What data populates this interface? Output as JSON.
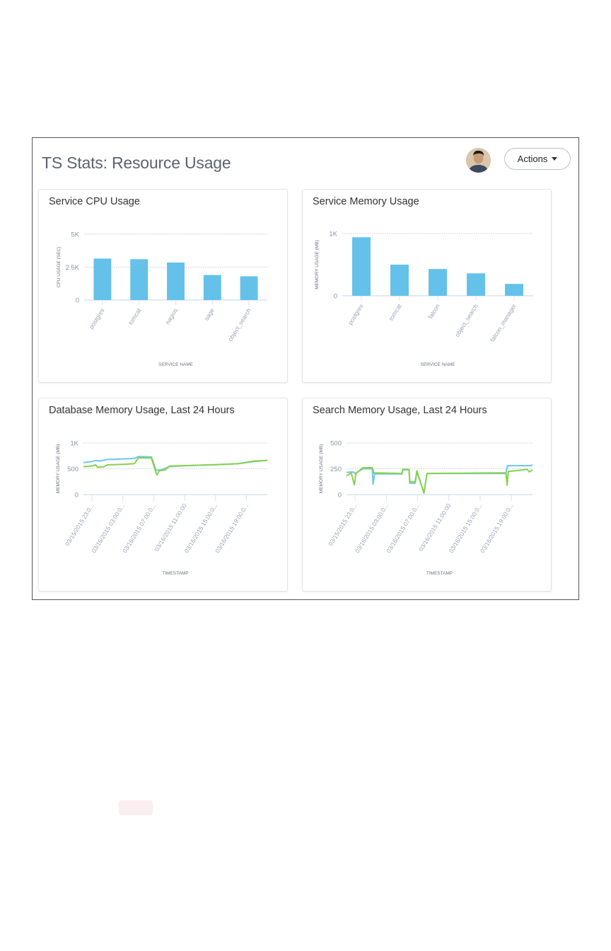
{
  "header": {
    "title": "TS Stats: Resource Usage",
    "actions_label": "Actions"
  },
  "colors": {
    "bar": "#63c1ea",
    "series_blue": "#6ec6ee",
    "series_green": "#86d24a",
    "grid": "#c9ccd3",
    "axis": "#d6e4f2"
  },
  "chart_data": [
    {
      "type": "bar",
      "title": "Service CPU Usage",
      "xlabel": "SERVICE NAME",
      "ylabel": "CPU USAGE (SEC)",
      "ylim": [
        0,
        5000
      ],
      "yticks": [
        {
          "v": 0,
          "label": "0"
        },
        {
          "v": 2500,
          "label": "2.5K"
        },
        {
          "v": 5000,
          "label": "5K"
        }
      ],
      "categories": [
        "postgres",
        "tomcat",
        "nagios",
        "sage",
        "object_search"
      ],
      "values": [
        3150,
        3100,
        2850,
        1900,
        1800
      ]
    },
    {
      "type": "bar",
      "title": "Service Memory Usage",
      "xlabel": "SERVICE NAME",
      "ylabel": "MEMORY USAGE (MB)",
      "ylim": [
        0,
        1000
      ],
      "yticks": [
        {
          "v": 0,
          "label": "0"
        },
        {
          "v": 1000,
          "label": "1K"
        }
      ],
      "categories": [
        "postgres",
        "tomcat",
        "falcon",
        "object_search",
        "falcon_manager"
      ],
      "values": [
        940,
        500,
        430,
        360,
        190
      ]
    },
    {
      "type": "line",
      "title": "Database Memory Usage, Last 24 Hours",
      "xlabel": "TIMESTAMP",
      "ylabel": "MEMORY USAGE (MB)",
      "ylim": [
        0,
        1000
      ],
      "xlim_hours_from_first_tick": [
        -1.1,
        22.7
      ],
      "yticks": [
        {
          "v": 0,
          "label": "0"
        },
        {
          "v": 500,
          "label": "500"
        },
        {
          "v": 1000,
          "label": "1K"
        }
      ],
      "xticks": [
        {
          "h": 0,
          "label": "03/15/2015 23:0..."
        },
        {
          "h": 4,
          "label": "03/16/2015 03:00:0..."
        },
        {
          "h": 8,
          "label": "03/16/2015 07:00:0..."
        },
        {
          "h": 12,
          "label": "03/16/2015 11:00:00"
        },
        {
          "h": 16,
          "label": "03/16/2015 15:00:0..."
        },
        {
          "h": 20,
          "label": "03/16/2015 19:00:0..."
        }
      ],
      "series": [
        {
          "name": "blue",
          "points": [
            [
              -1.1,
              620
            ],
            [
              0,
              640
            ],
            [
              0.5,
              660
            ],
            [
              1,
              650
            ],
            [
              2,
              680
            ],
            [
              4,
              690
            ],
            [
              5.5,
              700
            ],
            [
              6,
              735
            ],
            [
              7.7,
              730
            ],
            [
              8.3,
              470
            ],
            [
              9,
              480
            ],
            [
              10,
              540
            ],
            [
              12,
              560
            ],
            [
              16,
              580
            ],
            [
              19,
              600
            ],
            [
              21,
              640
            ],
            [
              22.7,
              665
            ]
          ]
        },
        {
          "name": "green",
          "points": [
            [
              -1.1,
              540
            ],
            [
              0,
              555
            ],
            [
              0.5,
              575
            ],
            [
              0.7,
              530
            ],
            [
              1.5,
              535
            ],
            [
              2,
              575
            ],
            [
              4,
              585
            ],
            [
              5.5,
              600
            ],
            [
              6,
              710
            ],
            [
              7.7,
              710
            ],
            [
              8.3,
              420
            ],
            [
              8.4,
              380
            ],
            [
              8.7,
              460
            ],
            [
              9.5,
              480
            ],
            [
              10,
              550
            ],
            [
              12,
              560
            ],
            [
              16,
              580
            ],
            [
              19,
              600
            ],
            [
              21,
              650
            ],
            [
              22.7,
              660
            ]
          ]
        }
      ]
    },
    {
      "type": "line",
      "title": "Search Memory Usage, Last 24 Hours",
      "xlabel": "TIMESTAMP",
      "ylabel": "MEMORY USAGE (MB)",
      "ylim": [
        0,
        500
      ],
      "xlim_hours_from_first_tick": [
        -1.1,
        22.7
      ],
      "yticks": [
        {
          "v": 0,
          "label": "0"
        },
        {
          "v": 250,
          "label": "250"
        },
        {
          "v": 500,
          "label": "500"
        }
      ],
      "xticks": [
        {
          "h": 0,
          "label": "03/15/2015 23:0..."
        },
        {
          "h": 4,
          "label": "03/16/2015 03:00:0..."
        },
        {
          "h": 8,
          "label": "03/16/2015 07:00:0..."
        },
        {
          "h": 12,
          "label": "03/16/2015 11:00:00"
        },
        {
          "h": 16,
          "label": "03/16/2015 15:00:0..."
        },
        {
          "h": 20,
          "label": "03/16/2015 19:00:0..."
        }
      ],
      "series": [
        {
          "name": "blue",
          "points": [
            [
              -1.1,
              215
            ],
            [
              -0.3,
              220
            ],
            [
              0,
              205
            ],
            [
              1,
              250
            ],
            [
              2.2,
              250
            ],
            [
              2.3,
              100
            ],
            [
              2.5,
              200
            ],
            [
              6,
              200
            ],
            [
              6.1,
              240
            ],
            [
              6.9,
              240
            ],
            [
              7,
              110
            ],
            [
              7.7,
              110
            ],
            [
              7.9,
              225
            ],
            [
              8.8,
              15
            ],
            [
              9.2,
              205
            ],
            [
              19.3,
              205
            ],
            [
              19.5,
              280
            ],
            [
              22.5,
              280
            ],
            [
              22.7,
              290
            ]
          ]
        },
        {
          "name": "green",
          "points": [
            [
              -1.1,
              180
            ],
            [
              -0.5,
              210
            ],
            [
              -0.1,
              95
            ],
            [
              0.1,
              205
            ],
            [
              1,
              260
            ],
            [
              2.2,
              260
            ],
            [
              2.4,
              210
            ],
            [
              6,
              205
            ],
            [
              6.1,
              245
            ],
            [
              6.9,
              245
            ],
            [
              7,
              125
            ],
            [
              7.7,
              125
            ],
            [
              7.9,
              230
            ],
            [
              8.8,
              15
            ],
            [
              9.2,
              205
            ],
            [
              19.3,
              210
            ],
            [
              19.45,
              90
            ],
            [
              19.6,
              225
            ],
            [
              21,
              235
            ],
            [
              22,
              245
            ],
            [
              22.3,
              220
            ],
            [
              22.7,
              240
            ]
          ]
        }
      ]
    }
  ]
}
